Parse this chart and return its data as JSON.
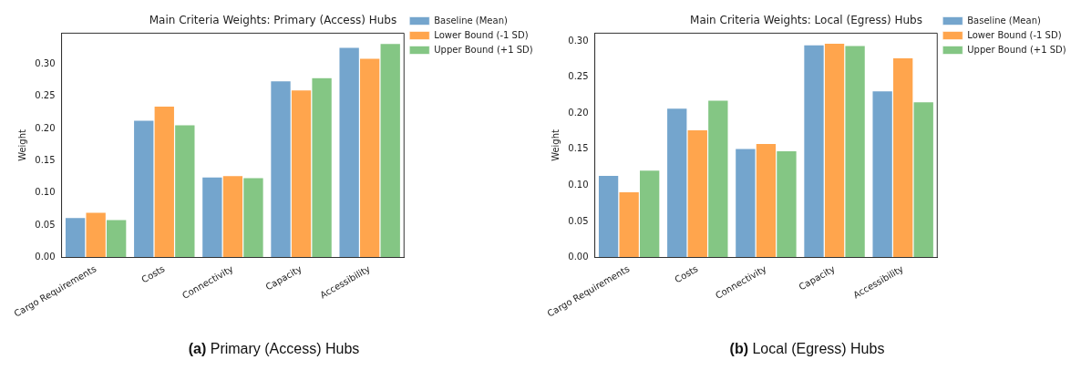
{
  "chart_data": [
    {
      "type": "bar",
      "title": "Main Criteria Weights: Primary (Access) Hubs",
      "ylabel": "Weight",
      "categories": [
        "Cargo Requirements",
        "Costs",
        "Connectivity",
        "Capacity",
        "Accessibility"
      ],
      "series": [
        {
          "name": "Baseline (Mean)",
          "color": "#74a5cd",
          "values": [
            0.062,
            0.213,
            0.125,
            0.274,
            0.326
          ]
        },
        {
          "name": "Lower Bound (-1 SD)",
          "color": "#ffa54d",
          "values": [
            0.07,
            0.235,
            0.127,
            0.26,
            0.309
          ]
        },
        {
          "name": "Upper Bound (+1 SD)",
          "color": "#84c684",
          "values": [
            0.059,
            0.206,
            0.124,
            0.279,
            0.332
          ]
        }
      ],
      "ylim": [
        0,
        0.348
      ],
      "yticks": [
        {
          "value": 0,
          "label": "0.00"
        },
        {
          "value": 0.05,
          "label": "0.05"
        },
        {
          "value": 0.1,
          "label": "0.10"
        },
        {
          "value": 0.15,
          "label": "0.15"
        },
        {
          "value": 0.2,
          "label": "0.20"
        },
        {
          "value": 0.25,
          "label": "0.25"
        },
        {
          "value": 0.3,
          "label": "0.30"
        }
      ],
      "grid": false,
      "legend": "right",
      "annotations": [
        "(a) Primary (Access) Hubs"
      ]
    },
    {
      "type": "bar",
      "title": "Main Criteria Weights: Local (Egress) Hubs",
      "ylabel": "Weight",
      "categories": [
        "Cargo Requirements",
        "Costs",
        "Connectivity",
        "Capacity",
        "Accessibility"
      ],
      "series": [
        {
          "name": "Baseline (Mean)",
          "color": "#74a5cd",
          "values": [
            0.114,
            0.207,
            0.151,
            0.295,
            0.231
          ]
        },
        {
          "name": "Lower Bound (-1 SD)",
          "color": "#ffa54d",
          "values": [
            0.091,
            0.177,
            0.158,
            0.297,
            0.277
          ]
        },
        {
          "name": "Upper Bound (+1 SD)",
          "color": "#84c684",
          "values": [
            0.121,
            0.218,
            0.148,
            0.294,
            0.216
          ]
        }
      ],
      "ylim": [
        0,
        0.311
      ],
      "yticks": [
        {
          "value": 0,
          "label": "0.00"
        },
        {
          "value": 0.05,
          "label": "0.05"
        },
        {
          "value": 0.1,
          "label": "0.10"
        },
        {
          "value": 0.15,
          "label": "0.15"
        },
        {
          "value": 0.2,
          "label": "0.20"
        },
        {
          "value": 0.25,
          "label": "0.25"
        },
        {
          "value": 0.3,
          "label": "0.30"
        }
      ],
      "grid": false,
      "legend": "right",
      "annotations": [
        "(b) Local (Egress) Hubs"
      ]
    }
  ]
}
